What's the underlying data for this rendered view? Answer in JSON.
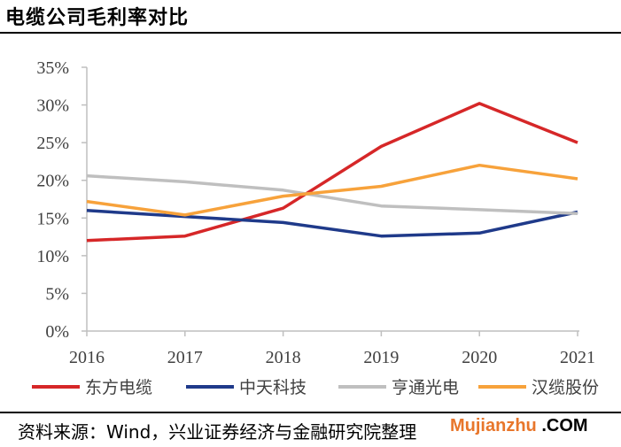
{
  "title": "电缆公司毛利率对比",
  "source": "资料来源：Wind，兴业证券经济与金融研究院整理",
  "watermark": {
    "brand": "Mujianzhu",
    "suffix": ".COM"
  },
  "chart_data": {
    "type": "line",
    "title": "电缆公司毛利率对比",
    "xlabel": "",
    "ylabel": "",
    "x": [
      "2016",
      "2017",
      "2018",
      "2019",
      "2020",
      "2021"
    ],
    "ylim": [
      0,
      35
    ],
    "yticks": [
      "0%",
      "5%",
      "10%",
      "15%",
      "20%",
      "25%",
      "30%",
      "35%"
    ],
    "grid": false,
    "legend_position": "bottom",
    "series": [
      {
        "name": "东方电缆",
        "color": "#d62728",
        "values": [
          12.0,
          12.6,
          16.3,
          24.5,
          30.2,
          25.0
        ]
      },
      {
        "name": "中天科技",
        "color": "#1f3a8a",
        "values": [
          16.0,
          15.2,
          14.4,
          12.6,
          13.0,
          15.8
        ]
      },
      {
        "name": "亨通光电",
        "color": "#bfbfbf",
        "values": [
          20.6,
          19.8,
          18.7,
          16.6,
          16.1,
          15.6
        ]
      },
      {
        "name": "汉缆股份",
        "color": "#f7a23b",
        "values": [
          17.2,
          15.4,
          17.9,
          19.2,
          22.0,
          20.2
        ]
      }
    ]
  }
}
